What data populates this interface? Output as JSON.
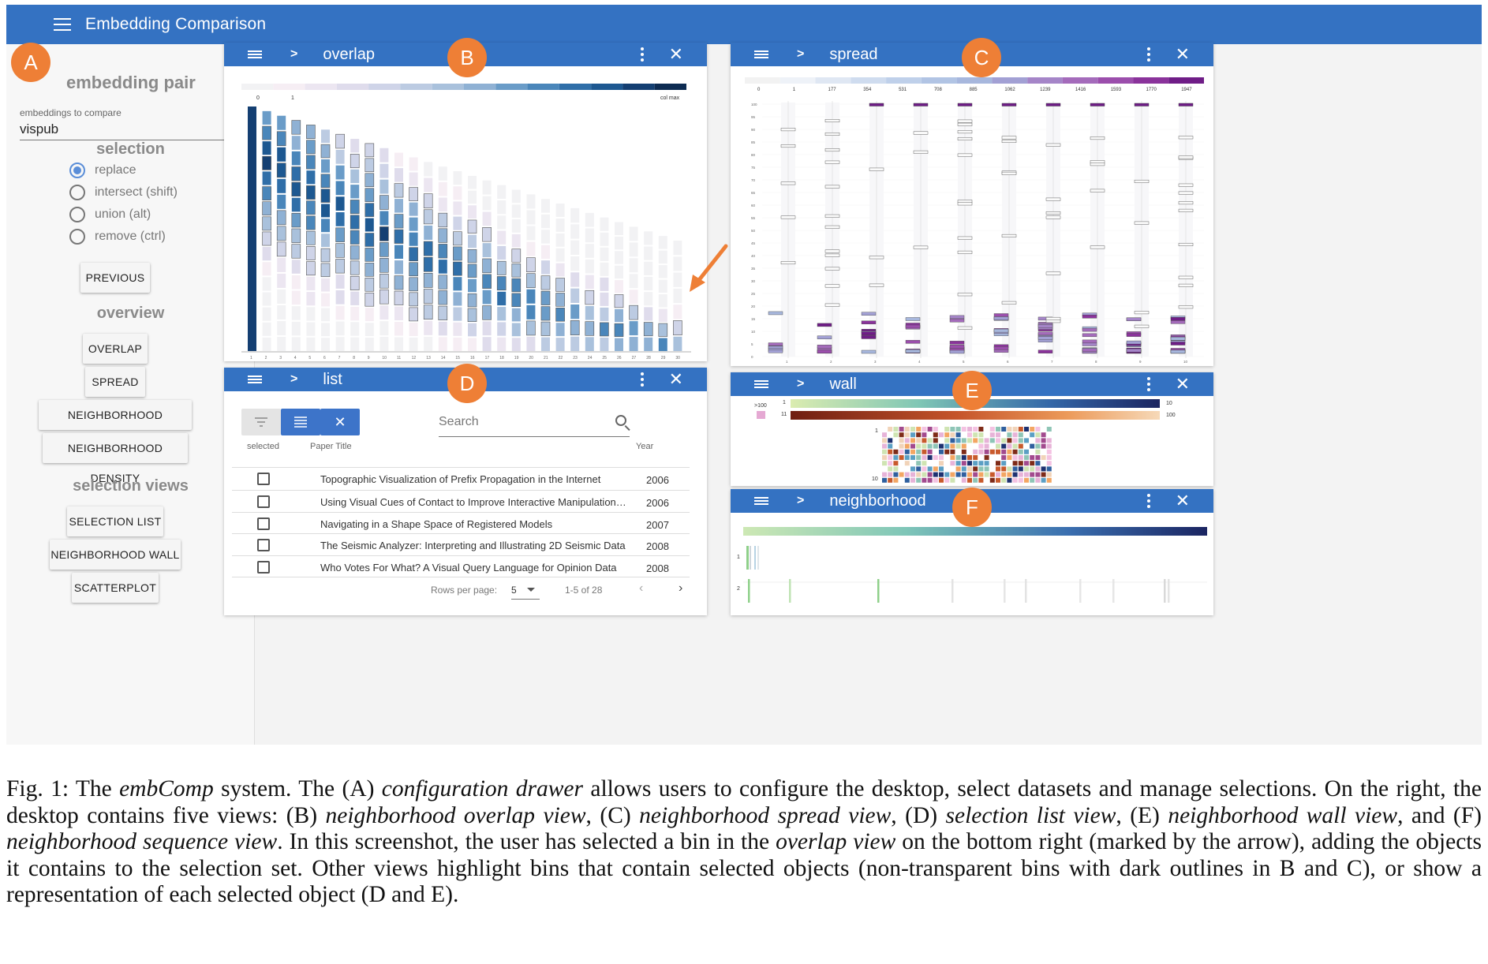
{
  "app": {
    "title": "Embedding Comparison"
  },
  "drawer": {
    "embedding_pair_title": "embedding pair",
    "select_label": "embeddings to compare",
    "select_value": "vispub",
    "selection_title": "selection",
    "radios": [
      {
        "label": "replace",
        "checked": true
      },
      {
        "label": "intersect (shift)",
        "checked": false
      },
      {
        "label": "union (alt)",
        "checked": false
      },
      {
        "label": "remove (ctrl)",
        "checked": false
      }
    ],
    "previous_label": "PREVIOUS",
    "overview_title": "overview",
    "overview_buttons": [
      "OVERLAP",
      "SPREAD",
      "NEIGHBORHOOD DISTANCE",
      "NEIGHBORHOOD DENSITY"
    ],
    "selection_views_title": "selection views",
    "selection_view_buttons": [
      "SELECTION LIST",
      "NEIGHBORHOOD WALL",
      "SCATTERPLOT"
    ]
  },
  "badges": [
    "A",
    "B",
    "C",
    "D",
    "E",
    "F"
  ],
  "panels": {
    "overlap": {
      "title": "overlap",
      "scale_labels": [
        "0",
        "1",
        "col max"
      ]
    },
    "spread": {
      "title": "spread",
      "scale_labels": [
        "0",
        "1",
        "177",
        "354",
        "531",
        "708",
        "885",
        "1062",
        "1239",
        "1416",
        "1593",
        "1770",
        "1947"
      ]
    },
    "list": {
      "title": "list",
      "search_placeholder": "Search",
      "headers": {
        "selected": "selected",
        "title": "Paper Title",
        "year": "Year"
      },
      "rows": [
        {
          "title": "Topographic Visualization of Prefix Propagation in the Internet",
          "year": "2006"
        },
        {
          "title": "Using Visual Cues of Contact to Improve Interactive Manipulation of Virtual...",
          "year": "2006"
        },
        {
          "title": "Navigating in a Shape Space of Registered Models",
          "year": "2007"
        },
        {
          "title": "The Seismic Analyzer: Interpreting and Illustrating 2D Seismic Data",
          "year": "2008"
        },
        {
          "title": "Who Votes For What? A Visual Query Language for Opinion Data",
          "year": "2008"
        }
      ],
      "rows_per_page_label": "Rows per page:",
      "rows_per_page": "5",
      "page_range": "1-5 of 28"
    },
    "wall": {
      "title": "wall",
      "legend": {
        "overflow": ">100",
        "a_start": "1",
        "a_end": "10",
        "b_start": "11",
        "b_end": "100"
      },
      "grid_labels": [
        "1",
        "10"
      ]
    },
    "neighborhood": {
      "title": "neighborhood",
      "row_labels": [
        "1",
        "2"
      ]
    }
  },
  "caption": {
    "p1": "Fig. 1:  The ",
    "i1": "embComp",
    "p2": " system. The (A) ",
    "i2": "configuration drawer",
    "p3": " allows users to configure the desktop, select datasets and manage selections. On the right, the desktop contains five views: (B) ",
    "i3": "neighborhood overlap view",
    "p4": ", (C) ",
    "i4": "neighborhood spread view",
    "p5": ", (D) ",
    "i5": "selection list view",
    "p6": ", (E) ",
    "i6": "neighborhood wall view",
    "p7": ", and (F) ",
    "i7": "neighborhood sequence view",
    "p8": ". In this screenshot, the user has selected a bin in the ",
    "i8": "overlap view",
    "p9": " on the bottom right (marked by the arrow), adding the objects it contains to the selection set. Other views highlight bins that contain selected objects (non-transparent bins with dark outlines in B and C), or show a representation of each selected object (D and E)."
  }
}
